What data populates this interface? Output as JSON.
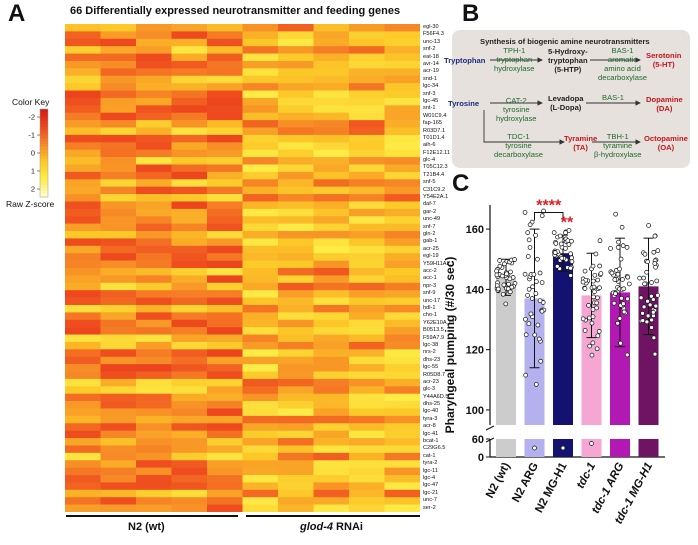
{
  "panel_a": {
    "letter": "A",
    "title": "66 Differentially expressed neurotransmitter and feeding genes",
    "color_key": {
      "title": "Color Key",
      "footer": "Raw Z-score",
      "ticks": [
        "-2",
        "-1",
        "0",
        "1",
        "2"
      ]
    },
    "groups": [
      {
        "label": "N2 (wt)"
      },
      {
        "label_italic": "glod-4",
        "label_rest": " RNAi"
      }
    ],
    "genes": [
      "egl-30",
      "F56F4.3",
      "unc-13",
      "snf-2",
      "eat-18",
      "avr-14",
      "acr-19",
      "snd-1",
      "lgc-34",
      "snf-3",
      "lgc-45",
      "snt-1",
      "W01C9.4",
      "fap-165",
      "R03D7.1",
      "T01D1.4",
      "aih-6",
      "F12E12.11",
      "glc-4",
      "T05C12.3",
      "T21B4.4",
      "snf-5",
      "C31C9.2",
      "Y54E2A.1",
      "daf-7",
      "gar-2",
      "unc-49",
      "snf-7",
      "gln-2",
      "gab-1",
      "acr-25",
      "egl-19",
      "Y59H11AL.1",
      "acc-2",
      "acc-1",
      "npr-3",
      "snf-9",
      "unc-17",
      "hdl-1",
      "cho-1",
      "Y62E10A.13",
      "B0513.5",
      "F59A7.9",
      "lgc-38",
      "nrs-2",
      "dhs-23",
      "lgc-55",
      "R05D8.7",
      "acr-23",
      "glc-3",
      "Y44A6D.5",
      "dhs-25",
      "lgc-40",
      "tyra-3",
      "acr-8",
      "lgc-41",
      "bcat-1",
      "C29G6.5",
      "cat-1",
      "tyra-2",
      "lgc-11",
      "lgc-4",
      "lgc-47",
      "lgc-21",
      "unc-7",
      "ser-2"
    ]
  },
  "panel_b": {
    "letter": "B",
    "title": "Synthesis of biogenic amine neurotransmitters",
    "nodes": {
      "tryptophan": "Tryptophan",
      "htp": "5-Hydroxy-\ntryptophan\n(5-HTP)",
      "serotonin": "Serotonin\n(5-HT)",
      "tyrosine": "Tyrosine",
      "ldopa": "Levadopa\n(L-Dopa)",
      "dopamine": "Dopamine\n(DA)",
      "tyramine": "Tyramine\n(TA)",
      "octopamine": "Octopamine\n(OA)"
    },
    "enzymes": {
      "tph1": "TPH-1\ntryptophan\nhydroxylase",
      "bas1_top": "BAS-1\naromatic\namino acid\ndecarboxylase",
      "cat2": "CAT-2\ntyrosine\nhydroxylase",
      "bas1_mid": "BAS-1",
      "tdc1": "TDC-1\ntyrosine\ndecarboxylase",
      "tbh1": "TBH-1\ntyramine\nβ-hydroxylase"
    }
  },
  "panel_c": {
    "letter": "C",
    "chart_data": {
      "type": "bar",
      "ylabel": "Pharyngeal pumping (#/30 sec)",
      "ylim_upper": [
        95,
        168
      ],
      "yticks_upper": [
        100,
        120,
        140,
        160
      ],
      "yticks_lower": [
        0,
        60
      ],
      "axis_break": true,
      "categories": [
        {
          "label": "N2 (wt)",
          "italic": false
        },
        {
          "label": "N2 ARG",
          "italic": false
        },
        {
          "label": "N2 MG-H1",
          "italic": false
        },
        {
          "label": "tdc-1",
          "italic": true
        },
        {
          "label": "tdc-1 ARG",
          "italic": true
        },
        {
          "label": "tdc-1 MG-H1",
          "italic": true
        }
      ],
      "values": [
        144,
        137,
        152,
        138,
        139,
        141
      ],
      "sd": [
        6,
        23,
        6,
        14,
        18,
        16
      ],
      "colors": [
        "#cccccc",
        "#b3b1ee",
        "#141270",
        "#f5a6d2",
        "#b218b2",
        "#6e1462"
      ],
      "significance": [
        {
          "from": 1,
          "to": 2,
          "label": "****",
          "color": "#e01e1e"
        },
        {
          "at": 2,
          "label": "**",
          "color": "#e01e1e"
        }
      ]
    }
  }
}
